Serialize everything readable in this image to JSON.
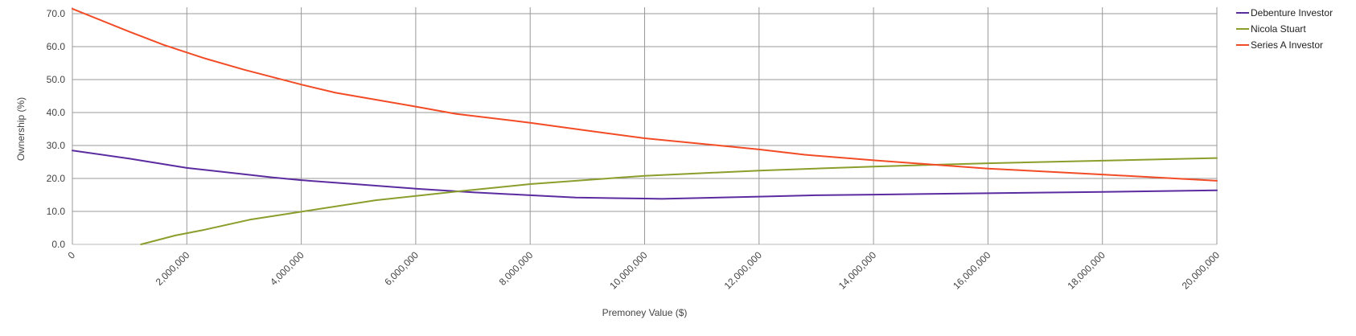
{
  "chart_data": {
    "type": "line",
    "title": "",
    "xlabel": "Premoney Value ($)",
    "ylabel": "Ownership (%)",
    "xlim": [
      0,
      20000000
    ],
    "ylim": [
      0,
      70
    ],
    "x_ticks": [
      0,
      2000000,
      4000000,
      6000000,
      8000000,
      10000000,
      12000000,
      14000000,
      16000000,
      18000000,
      20000000
    ],
    "x_tick_labels": [
      "0",
      "2,000,000",
      "4,000,000",
      "6,000,000",
      "8,000,000",
      "10,000,000",
      "12,000,000",
      "14,000,000",
      "16,000,000",
      "18,000,000",
      "20,000,000"
    ],
    "y_ticks": [
      0,
      10,
      20,
      30,
      40,
      50,
      60,
      70
    ],
    "y_tick_labels": [
      "0.0",
      "10.0",
      "20.0",
      "30.0",
      "40.0",
      "50.0",
      "60.0",
      "70.0"
    ],
    "grid": true,
    "legend_position": "top-right",
    "series": [
      {
        "name": "Debenture Investor",
        "color": "#5b2ca0",
        "points": [
          [
            0,
            28.5
          ],
          [
            1000000,
            26.0
          ],
          [
            2000000,
            23.2
          ],
          [
            3000000,
            21.3
          ],
          [
            3500000,
            20.3
          ],
          [
            4000000,
            19.5
          ],
          [
            5000000,
            18.2
          ],
          [
            6000000,
            16.9
          ],
          [
            7000000,
            15.8
          ],
          [
            8000000,
            14.9
          ],
          [
            8800000,
            14.2
          ],
          [
            10000000,
            13.9
          ],
          [
            10300000,
            13.8
          ],
          [
            12000000,
            14.5
          ],
          [
            13000000,
            14.9
          ],
          [
            14000000,
            15.1
          ],
          [
            16000000,
            15.5
          ],
          [
            18000000,
            15.9
          ],
          [
            20000000,
            16.4
          ]
        ]
      },
      {
        "name": "Nicola Stuart",
        "color": "#8a9e2c",
        "points": [
          [
            1200000,
            0.0
          ],
          [
            1800000,
            2.7
          ],
          [
            2300000,
            4.4
          ],
          [
            3100000,
            7.5
          ],
          [
            4000000,
            9.9
          ],
          [
            5300000,
            13.4
          ],
          [
            6700000,
            16.0
          ],
          [
            8000000,
            18.3
          ],
          [
            10000000,
            20.8
          ],
          [
            12000000,
            22.4
          ],
          [
            14000000,
            23.6
          ],
          [
            16000000,
            24.6
          ],
          [
            18000000,
            25.4
          ],
          [
            20000000,
            26.2
          ]
        ]
      },
      {
        "name": "Series A Investor",
        "color": "#f24b25",
        "points": [
          [
            0,
            71.5
          ],
          [
            1000000,
            64.5
          ],
          [
            1600000,
            60.5
          ],
          [
            2300000,
            56.5
          ],
          [
            3000000,
            53.0
          ],
          [
            4000000,
            48.5
          ],
          [
            4600000,
            46.0
          ],
          [
            6000000,
            41.8
          ],
          [
            6700000,
            39.6
          ],
          [
            8000000,
            36.9
          ],
          [
            9000000,
            34.5
          ],
          [
            10000000,
            32.2
          ],
          [
            12000000,
            28.8
          ],
          [
            12800000,
            27.2
          ],
          [
            14000000,
            25.5
          ],
          [
            15200000,
            24.0
          ],
          [
            16000000,
            23.0
          ],
          [
            18000000,
            21.2
          ],
          [
            20000000,
            19.3
          ]
        ]
      }
    ]
  }
}
